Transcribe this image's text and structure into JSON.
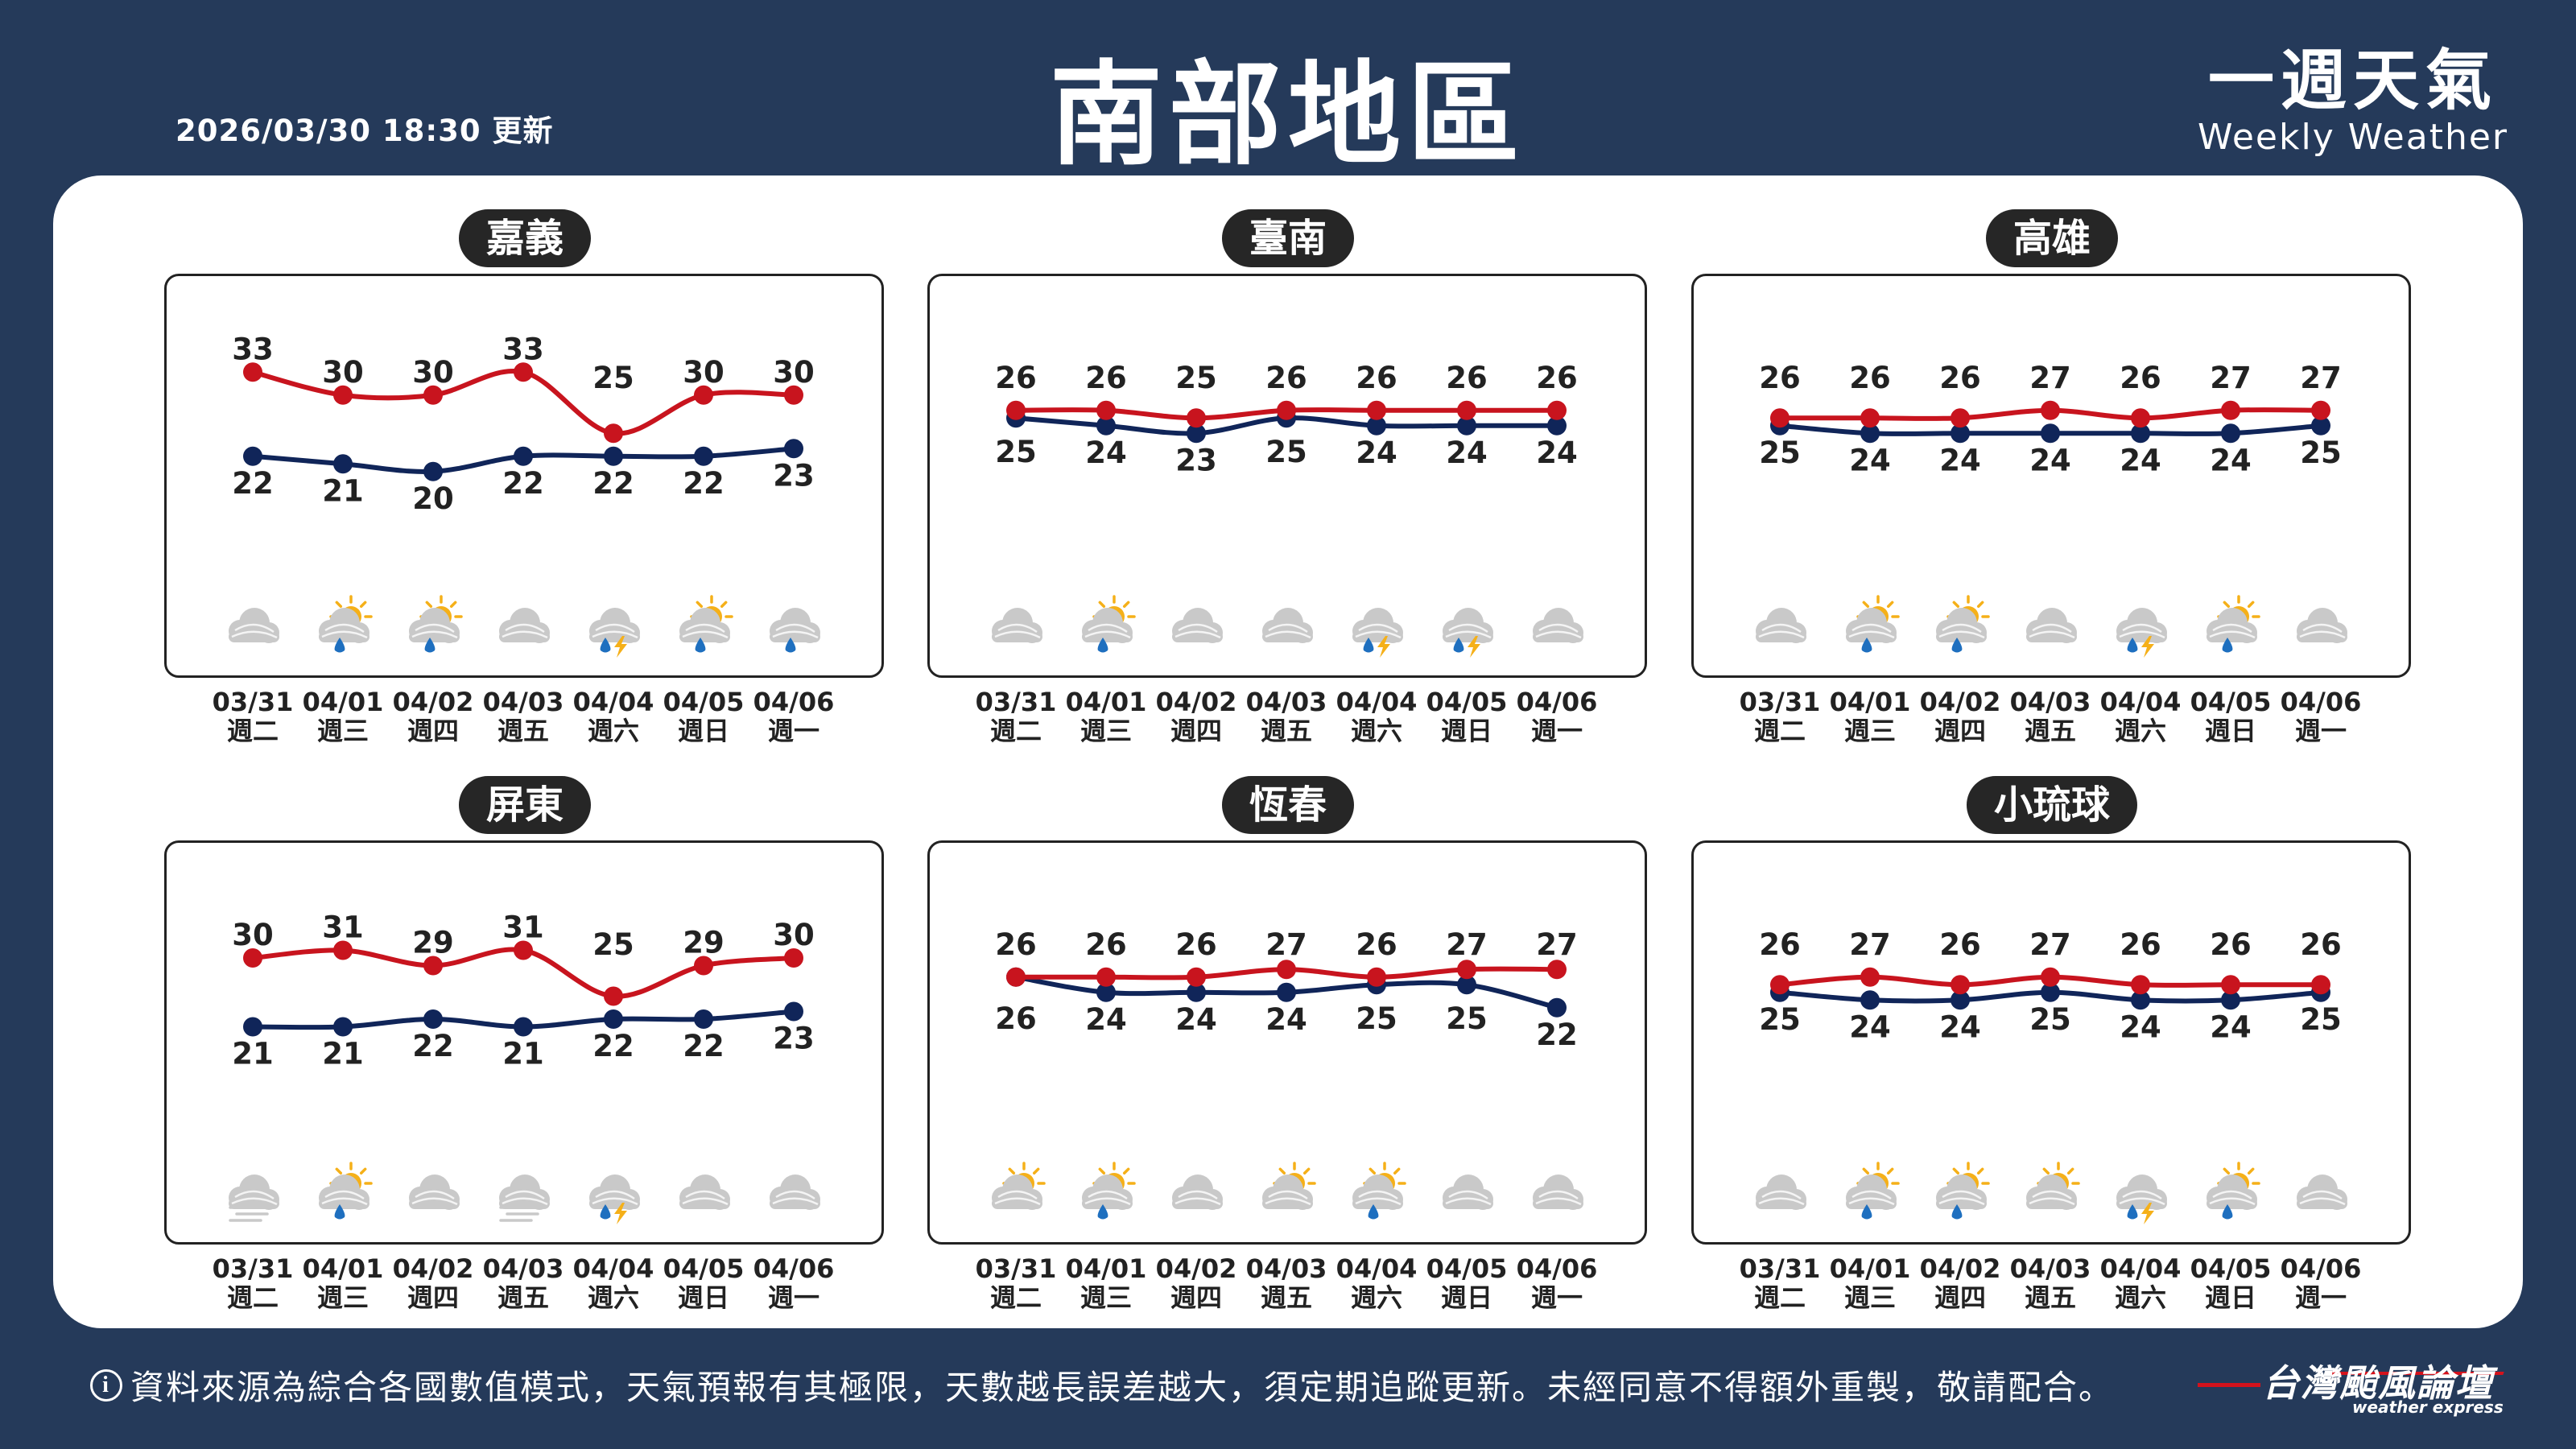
{
  "header": {
    "timestamp": "2026/03/30 18:30 更新",
    "title": "南部地區",
    "brand_zh": "一週天氣",
    "brand_en": "Weekly Weather"
  },
  "days": [
    {
      "date": "03/31",
      "weekday": "週二"
    },
    {
      "date": "04/01",
      "weekday": "週三"
    },
    {
      "date": "04/02",
      "weekday": "週四"
    },
    {
      "date": "04/03",
      "weekday": "週五"
    },
    {
      "date": "04/04",
      "weekday": "週六"
    },
    {
      "date": "04/05",
      "weekday": "週日"
    },
    {
      "date": "04/06",
      "weekday": "週一"
    }
  ],
  "colors": {
    "high": "#c8141e",
    "low": "#102559",
    "cloud": "#c9c9c9",
    "sun": "#f5b019",
    "rain": "#1e6fbf",
    "lightning": "#f5b019",
    "background": "#253a5a"
  },
  "chart_data": [
    {
      "type": "line",
      "city": "嘉義",
      "categories": [
        "03/31",
        "04/01",
        "04/02",
        "04/03",
        "04/04",
        "04/05",
        "04/06"
      ],
      "series": [
        {
          "key": "high",
          "values": [
            33,
            30,
            30,
            33,
            25,
            30,
            30
          ]
        },
        {
          "key": "low",
          "values": [
            22,
            21,
            20,
            22,
            22,
            22,
            23
          ]
        }
      ],
      "icons": [
        "cloudy-icon",
        "partly-sunny-rain-icon",
        "partly-sunny-rain-icon",
        "cloudy-icon",
        "thunder-rain-icon",
        "partly-sunny-rain-icon",
        "cloud-rain-icon"
      ]
    },
    {
      "type": "line",
      "city": "臺南",
      "categories": [
        "03/31",
        "04/01",
        "04/02",
        "04/03",
        "04/04",
        "04/05",
        "04/06"
      ],
      "series": [
        {
          "key": "high",
          "values": [
            26,
            26,
            25,
            26,
            26,
            26,
            26
          ]
        },
        {
          "key": "low",
          "values": [
            25,
            24,
            23,
            25,
            24,
            24,
            24
          ]
        }
      ],
      "icons": [
        "cloudy-icon",
        "partly-sunny-rain-icon",
        "cloudy-icon",
        "cloudy-icon",
        "thunder-rain-icon",
        "thunder-rain-icon",
        "cloudy-icon"
      ]
    },
    {
      "type": "line",
      "city": "高雄",
      "categories": [
        "03/31",
        "04/01",
        "04/02",
        "04/03",
        "04/04",
        "04/05",
        "04/06"
      ],
      "series": [
        {
          "key": "high",
          "values": [
            26,
            26,
            26,
            27,
            26,
            27,
            27
          ]
        },
        {
          "key": "low",
          "values": [
            25,
            24,
            24,
            24,
            24,
            24,
            25
          ]
        }
      ],
      "icons": [
        "cloudy-icon",
        "partly-sunny-rain-icon",
        "partly-sunny-rain-icon",
        "cloudy-icon",
        "thunder-rain-icon",
        "partly-sunny-rain-icon",
        "cloudy-icon"
      ]
    },
    {
      "type": "line",
      "city": "屏東",
      "categories": [
        "03/31",
        "04/01",
        "04/02",
        "04/03",
        "04/04",
        "04/05",
        "04/06"
      ],
      "series": [
        {
          "key": "high",
          "values": [
            30,
            31,
            29,
            31,
            25,
            29,
            30
          ]
        },
        {
          "key": "low",
          "values": [
            21,
            21,
            22,
            21,
            22,
            22,
            23
          ]
        }
      ],
      "icons": [
        "fog-icon",
        "partly-sunny-rain-icon",
        "cloudy-icon",
        "fog-icon",
        "thunder-rain-icon",
        "cloudy-icon",
        "cloudy-icon"
      ]
    },
    {
      "type": "line",
      "city": "恆春",
      "categories": [
        "03/31",
        "04/01",
        "04/02",
        "04/03",
        "04/04",
        "04/05",
        "04/06"
      ],
      "series": [
        {
          "key": "high",
          "values": [
            26,
            26,
            26,
            27,
            26,
            27,
            27
          ]
        },
        {
          "key": "low",
          "values": [
            26,
            24,
            24,
            24,
            25,
            25,
            22
          ]
        }
      ],
      "icons": [
        "partly-sunny-icon",
        "partly-sunny-rain-icon",
        "cloudy-icon",
        "partly-sunny-icon",
        "partly-sunny-rain-icon",
        "cloudy-icon",
        "cloudy-icon"
      ]
    },
    {
      "type": "line",
      "city": "小琉球",
      "categories": [
        "03/31",
        "04/01",
        "04/02",
        "04/03",
        "04/04",
        "04/05",
        "04/06"
      ],
      "series": [
        {
          "key": "high",
          "values": [
            26,
            27,
            26,
            27,
            26,
            26,
            26
          ]
        },
        {
          "key": "low",
          "values": [
            25,
            24,
            24,
            25,
            24,
            24,
            25
          ]
        }
      ],
      "icons": [
        "cloudy-icon",
        "partly-sunny-rain-icon",
        "partly-sunny-rain-icon",
        "partly-sunny-icon",
        "thunder-rain-icon",
        "partly-sunny-rain-icon",
        "cloudy-icon"
      ]
    }
  ],
  "footer": {
    "info_icon": "i",
    "disclaimer": "資料來源為綜合各國數值模式，天氣預報有其極限，天數越長誤差越大，須定期追蹤更新。未經同意不得額外重製，敬請配合。",
    "logo_zh": "台灣颱風論壇",
    "logo_en": "weather express"
  }
}
